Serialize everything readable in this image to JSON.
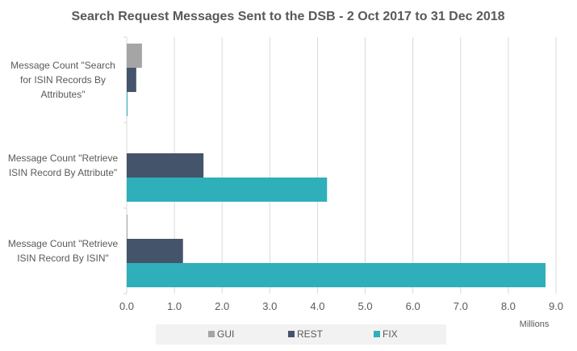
{
  "chart_data": {
    "type": "bar",
    "orientation": "horizontal",
    "title": "Search Request Messages Sent to the DSB - 2 Oct 2017 to 31 Dec 2018",
    "categories": [
      [
        "Message Count \"Search",
        "for ISIN Records By",
        "Attributes\""
      ],
      [
        "Message Count \"Retrieve",
        "ISIN Record By Attribute\""
      ],
      [
        "Message Count  \"Retrieve",
        "ISIN Record By ISIN\""
      ]
    ],
    "series": [
      {
        "name": "GUI",
        "color": "#A5A5A5",
        "values": [
          0.32,
          0.0,
          0.01
        ]
      },
      {
        "name": "REST",
        "color": "#44546A",
        "values": [
          0.2,
          1.61,
          1.18
        ]
      },
      {
        "name": "FIX",
        "color": "#2FAFB9",
        "values": [
          0.01,
          4.2,
          8.78
        ]
      }
    ],
    "xlim": [
      0,
      9
    ],
    "xticks": [
      "0.0",
      "1.0",
      "2.0",
      "3.0",
      "4.0",
      "5.0",
      "6.0",
      "7.0",
      "8.0",
      "9.0"
    ],
    "xunit_label": "Millions",
    "grid": true,
    "legend_position": "bottom"
  }
}
